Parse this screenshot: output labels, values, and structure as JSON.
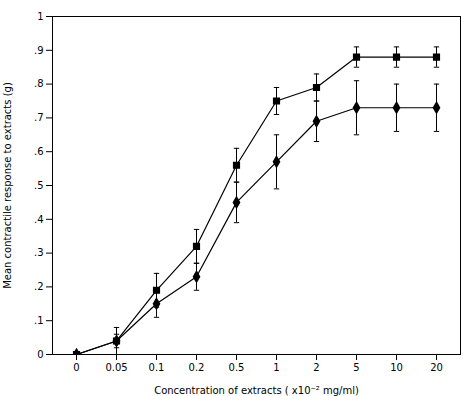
{
  "chart_data": {
    "type": "line",
    "xlabel": "Concentration of extracts ( x10⁻² mg/ml)",
    "ylabel": "Mean contractile response to extracts (g)",
    "categories": [
      "0",
      "0.05",
      "0.1",
      "0.2",
      "0.5",
      "1",
      "2",
      "5",
      "10",
      "20"
    ],
    "series": [
      {
        "color": "#000000",
        "marker": "square",
        "line_style": "solid",
        "values": [
          0.0,
          0.04,
          0.19,
          0.32,
          0.56,
          0.75,
          0.79,
          0.88,
          0.88,
          0.88
        ],
        "yerr": [
          0.0,
          0.04,
          0.05,
          0.05,
          0.05,
          0.04,
          0.04,
          0.03,
          0.03,
          0.03
        ]
      },
      {
        "color": "#000000",
        "marker": "diamond",
        "line_style": "solid",
        "values": [
          0.0,
          0.04,
          0.15,
          0.23,
          0.45,
          0.57,
          0.69,
          0.73,
          0.73,
          0.73
        ],
        "yerr": [
          0.0,
          0.02,
          0.04,
          0.04,
          0.06,
          0.08,
          0.06,
          0.08,
          0.07,
          0.07
        ]
      }
    ],
    "ylim": [
      0.0,
      1.0
    ],
    "yticks": [
      0,
      {
        "value": 0.1,
        "label": ".1"
      },
      {
        "value": 0.2,
        "label": ".2"
      },
      {
        "value": 0.3,
        "label": ".3"
      },
      {
        "value": 0.4,
        "label": ".4"
      },
      {
        "value": 0.5,
        "label": ".5"
      },
      {
        "value": 0.6,
        "label": ".6"
      },
      {
        "value": 0.7,
        "label": ".7"
      },
      {
        "value": 0.8,
        "label": ".8"
      },
      {
        "value": 0.9,
        "label": ".9"
      },
      1
    ],
    "grid": false
  }
}
